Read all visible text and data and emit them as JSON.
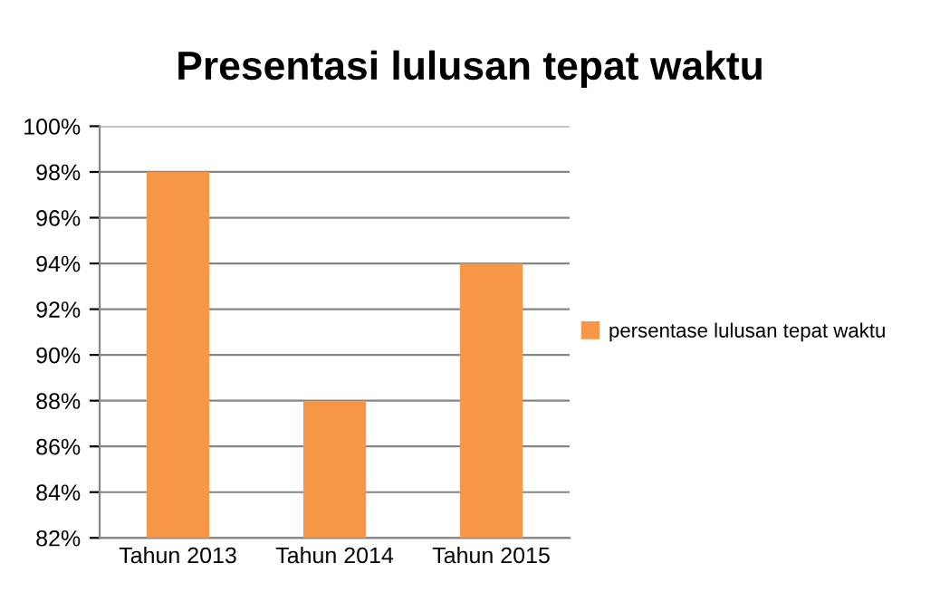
{
  "chart_data": {
    "type": "bar",
    "title": "Presentasi lulusan tepat waktu",
    "categories": [
      "Tahun 2013",
      "Tahun 2014",
      "Tahun 2015"
    ],
    "series": [
      {
        "name": "persentase lulusan tepat waktu",
        "color": "#f79646",
        "values": [
          98,
          88,
          94
        ]
      }
    ],
    "ylim": [
      82,
      100
    ],
    "yticks": [
      {
        "value": 82,
        "label": "82%"
      },
      {
        "value": 84,
        "label": "84%"
      },
      {
        "value": 86,
        "label": "86%"
      },
      {
        "value": 88,
        "label": "88%"
      },
      {
        "value": 90,
        "label": "90%"
      },
      {
        "value": 92,
        "label": "92%"
      },
      {
        "value": 94,
        "label": "94%"
      },
      {
        "value": 96,
        "label": "96%"
      },
      {
        "value": 98,
        "label": "98%"
      },
      {
        "value": 100,
        "label": "100%"
      }
    ],
    "grid": "y",
    "legend": "right"
  }
}
